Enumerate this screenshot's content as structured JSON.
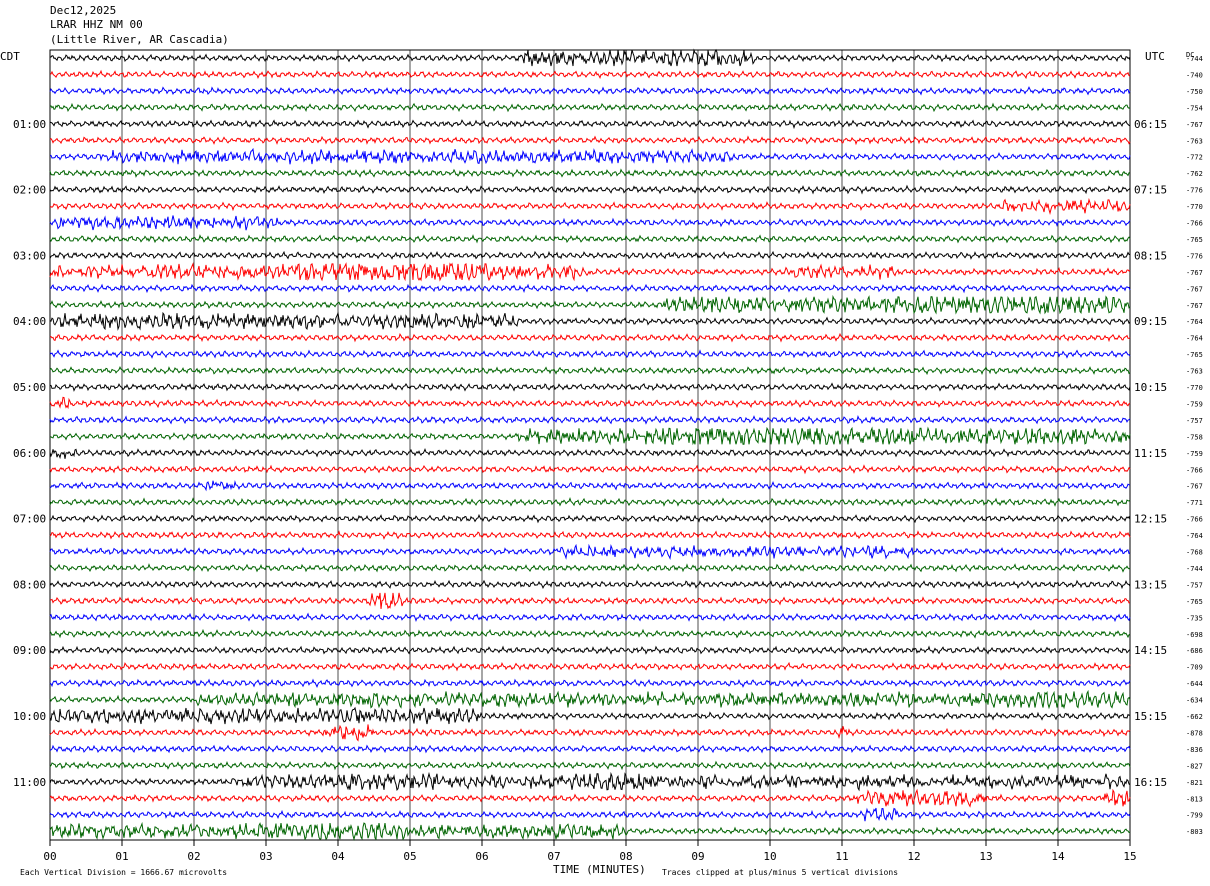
{
  "header": {
    "date": "Dec12,2025",
    "station": "LRAR HHZ NM 00",
    "location": "(Little River, AR Cascadia)"
  },
  "left_axis_label": "CDT",
  "right_axis_label": "UTC",
  "dc_label": "DC",
  "xlabel": "TIME (MINUTES)",
  "footer_left": "Each Vertical Division = 1666.67 microvolts",
  "footer_right": "Traces clipped at plus/minus 5 vertical divisions",
  "chart_data": {
    "type": "line",
    "xlim": [
      0,
      15
    ],
    "x_ticks": [
      "00",
      "01",
      "02",
      "03",
      "04",
      "05",
      "06",
      "07",
      "08",
      "09",
      "10",
      "11",
      "12",
      "13",
      "14",
      "15"
    ],
    "trace_colors": [
      "#000000",
      "#ff0000",
      "#0000ff",
      "#006400"
    ],
    "cdt_hour_labels": [
      "01:00",
      "02:00",
      "03:00",
      "04:00",
      "05:00",
      "06:00",
      "07:00",
      "08:00",
      "09:00",
      "10:00",
      "11:00"
    ],
    "utc_hour_labels": [
      "06:15",
      "07:15",
      "08:15",
      "09:15",
      "10:15",
      "11:15",
      "12:15",
      "13:15",
      "14:15",
      "15:15",
      "16:15"
    ],
    "dc_offsets": [
      -744,
      -740,
      -750,
      -754,
      -767,
      -763,
      -772,
      -762,
      -776,
      -770,
      -766,
      -765,
      -776,
      -767,
      -767,
      -767,
      -764,
      -764,
      -765,
      -763,
      -770,
      -759,
      -757,
      -758,
      -759,
      -766,
      -767,
      -771,
      -766,
      -764,
      -768,
      -744,
      -757,
      -765,
      -735,
      -698,
      -686,
      -709,
      -644,
      -634,
      -662,
      -878,
      -836,
      -827,
      -821,
      -813,
      -799,
      -803
    ],
    "bursts": [
      {
        "trace": 0,
        "start": 6.5,
        "end": 9.8,
        "amp": 2.2
      },
      {
        "trace": 6,
        "start": 0.7,
        "end": 9.5,
        "amp": 1.7
      },
      {
        "trace": 9,
        "start": 13.2,
        "end": 15,
        "amp": 1.6
      },
      {
        "trace": 10,
        "start": 0,
        "end": 3.2,
        "amp": 1.7
      },
      {
        "trace": 13,
        "start": 0,
        "end": 7.5,
        "amp": 1.9
      },
      {
        "trace": 13,
        "start": 3.2,
        "end": 6.2,
        "amp": 3.0
      },
      {
        "trace": 13,
        "start": 10.2,
        "end": 11.8,
        "amp": 1.6
      },
      {
        "trace": 15,
        "start": 8.5,
        "end": 15,
        "amp": 2.2
      },
      {
        "trace": 15,
        "start": 11.5,
        "end": 15,
        "amp": 3.0
      },
      {
        "trace": 16,
        "start": 0,
        "end": 6.5,
        "amp": 2.0
      },
      {
        "trace": 21,
        "start": 0.1,
        "end": 0.3,
        "amp": 2.0
      },
      {
        "trace": 23,
        "start": 6.5,
        "end": 15,
        "amp": 2.2
      },
      {
        "trace": 23,
        "start": 8.3,
        "end": 12.3,
        "amp": 3.0
      },
      {
        "trace": 24,
        "start": 0,
        "end": 0.4,
        "amp": 1.5
      },
      {
        "trace": 26,
        "start": 2.0,
        "end": 2.6,
        "amp": 1.4
      },
      {
        "trace": 30,
        "start": 7.0,
        "end": 12.0,
        "amp": 1.5
      },
      {
        "trace": 33,
        "start": 4.4,
        "end": 4.9,
        "amp": 3.0
      },
      {
        "trace": 39,
        "start": 2.0,
        "end": 15,
        "amp": 1.8
      },
      {
        "trace": 39,
        "start": 4.2,
        "end": 4.6,
        "amp": 3.2
      },
      {
        "trace": 39,
        "start": 13.2,
        "end": 15,
        "amp": 2.8
      },
      {
        "trace": 40,
        "start": 0,
        "end": 6.0,
        "amp": 2.0
      },
      {
        "trace": 41,
        "start": 3.8,
        "end": 4.5,
        "amp": 2.2
      },
      {
        "trace": 41,
        "start": 10.9,
        "end": 11.1,
        "amp": 1.8
      },
      {
        "trace": 44,
        "start": 2.5,
        "end": 15,
        "amp": 1.7
      },
      {
        "trace": 44,
        "start": 4.0,
        "end": 5.5,
        "amp": 2.8
      },
      {
        "trace": 44,
        "start": 7.2,
        "end": 8.4,
        "amp": 2.5
      },
      {
        "trace": 45,
        "start": 11.2,
        "end": 13.0,
        "amp": 2.4
      },
      {
        "trace": 45,
        "start": 14.6,
        "end": 15,
        "amp": 3.0
      },
      {
        "trace": 46,
        "start": 11.3,
        "end": 11.8,
        "amp": 2.6
      },
      {
        "trace": 47,
        "start": 0,
        "end": 8.0,
        "amp": 1.8
      },
      {
        "trace": 47,
        "start": 3.0,
        "end": 5.0,
        "amp": 2.6
      }
    ]
  }
}
